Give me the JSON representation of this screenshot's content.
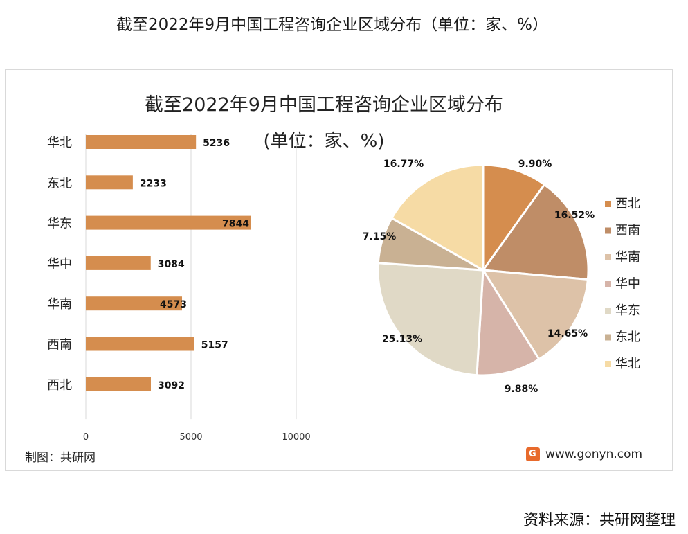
{
  "page": {
    "title": "截至2022年9月中国工程咨询企业区域分布（单位：家、%）",
    "source": "资料来源：共研网整理"
  },
  "footer": {
    "credit": "制图：共研网",
    "site": "www.gonyn.com"
  },
  "colors": {
    "bar": "#d58d4e",
    "axis": "#d9d9d9"
  },
  "chart_data": [
    {
      "type": "bar",
      "orientation": "horizontal",
      "title": "截至2022年9月中国工程咨询企业区域分布",
      "subtitle": "(单位：家、%)",
      "categories": [
        "华北",
        "东北",
        "华东",
        "华中",
        "华南",
        "西南",
        "西北"
      ],
      "values": [
        5236,
        2233,
        7844,
        3084,
        4573,
        5157,
        3092
      ],
      "value_labels": [
        "5236",
        "2233",
        "7844",
        "3084",
        "4573",
        "5157",
        "3092"
      ],
      "xlim": [
        0,
        10000
      ],
      "xticks": [
        0,
        5000,
        10000
      ],
      "xtick_labels": [
        "0",
        "5000",
        "10000"
      ],
      "grid": true
    },
    {
      "type": "pie",
      "slices": [
        {
          "name": "西北",
          "value": 9.9,
          "label": "9.90%",
          "color": "#d58d4e"
        },
        {
          "name": "西南",
          "value": 16.52,
          "label": "16.52%",
          "color": "#bf8d67"
        },
        {
          "name": "华南",
          "value": 14.65,
          "label": "14.65%",
          "color": "#ddc2a8"
        },
        {
          "name": "华中",
          "value": 9.88,
          "label": "9.88%",
          "color": "#d6b4a9"
        },
        {
          "name": "华东",
          "value": 25.13,
          "label": "25.13%",
          "color": "#e0d9c6"
        },
        {
          "name": "东北",
          "value": 7.15,
          "label": "7.15%",
          "color": "#c9b193"
        },
        {
          "name": "华北",
          "value": 16.77,
          "label": "16.77%",
          "color": "#f6dba5"
        }
      ],
      "legend": [
        "西北",
        "西南",
        "华南",
        "华中",
        "华东",
        "东北",
        "华北"
      ],
      "legend_position": "right"
    }
  ]
}
